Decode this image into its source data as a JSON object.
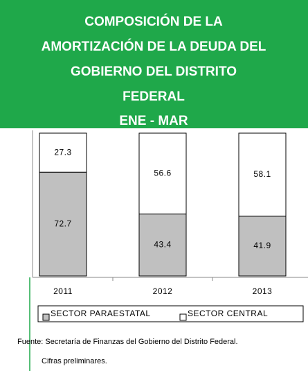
{
  "chart_data": {
    "type": "stacked_bar",
    "title": [
      "COMPOSICIÓN DE LA",
      "AMORTIZACIÓN DE LA DEUDA DEL",
      "GOBIERNO DEL DISTRITO",
      "FEDERAL"
    ],
    "subtitle": "ENE - MAR",
    "categories": [
      "2011",
      "2012",
      "2013"
    ],
    "series": [
      {
        "name": "SECTOR PARAESTATAL",
        "color": "#c0c0c0",
        "values": [
          72.7,
          43.4,
          41.9
        ]
      },
      {
        "name": "SECTOR CENTRAL",
        "color": "#ffffff",
        "values": [
          27.3,
          56.6,
          58.1
        ]
      }
    ],
    "ylim": [
      0,
      100
    ],
    "notes": [
      "Fuente: Secretaría de Finanzas del Gobierno del Distrito Federal.",
      "Cifras preliminares."
    ]
  }
}
